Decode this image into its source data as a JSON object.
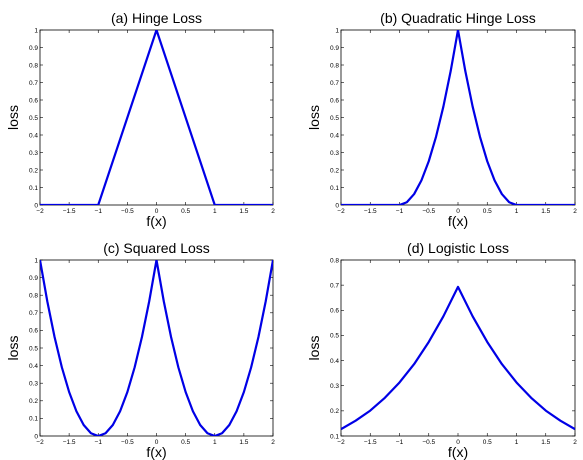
{
  "accent_color": "#0000e6",
  "chart_data": [
    {
      "type": "line",
      "title": "(a) Hinge Loss",
      "xlabel": "f(x)",
      "ylabel": "loss",
      "xlim": [
        -2,
        2
      ],
      "ylim": [
        0,
        1
      ],
      "x_ticks": [
        "−2",
        "−1.5",
        "−1",
        "−0.5",
        "0",
        "0.5",
        "1",
        "1.5",
        "2"
      ],
      "y_ticks": [
        "0",
        "0.1",
        "0.2",
        "0.3",
        "0.4",
        "0.5",
        "0.6",
        "0.7",
        "0.8",
        "0.9",
        "1"
      ],
      "series": [
        {
          "x": [
            -2,
            -1,
            0,
            1,
            2
          ],
          "y": [
            0,
            0,
            1,
            0,
            0
          ]
        }
      ]
    },
    {
      "type": "line",
      "title": "(b) Quadratic Hinge Loss",
      "xlabel": "f(x)",
      "ylabel": "loss",
      "xlim": [
        -2,
        2
      ],
      "ylim": [
        0,
        1
      ],
      "x_ticks": [
        "−2",
        "−1.5",
        "−1",
        "−0.5",
        "0",
        "0.5",
        "1",
        "1.5",
        "2"
      ],
      "y_ticks": [
        "0",
        "0.1",
        "0.2",
        "0.3",
        "0.4",
        "0.5",
        "0.6",
        "0.7",
        "0.8",
        "0.9",
        "1"
      ],
      "series": [
        {
          "x": [
            -2,
            -1,
            -0.875,
            -0.75,
            -0.625,
            -0.5,
            -0.375,
            -0.25,
            -0.125,
            0,
            0.125,
            0.25,
            0.375,
            0.5,
            0.625,
            0.75,
            0.875,
            1,
            2
          ],
          "y": [
            0,
            0,
            0.0156,
            0.0625,
            0.1406,
            0.25,
            0.3906,
            0.5625,
            0.7656,
            1,
            0.7656,
            0.5625,
            0.3906,
            0.25,
            0.1406,
            0.0625,
            0.0156,
            0,
            0
          ]
        }
      ]
    },
    {
      "type": "line",
      "title": "(c) Squared Loss",
      "xlabel": "f(x)",
      "ylabel": "loss",
      "xlim": [
        -2,
        2
      ],
      "ylim": [
        0,
        1
      ],
      "x_ticks": [
        "−2",
        "−1.5",
        "−1",
        "−0.5",
        "0",
        "0.5",
        "1",
        "1.5",
        "2"
      ],
      "y_ticks": [
        "0",
        "0.1",
        "0.2",
        "0.3",
        "0.4",
        "0.5",
        "0.6",
        "0.7",
        "0.8",
        "0.9",
        "1"
      ],
      "series": [
        {
          "x": [
            -2,
            -1.875,
            -1.75,
            -1.625,
            -1.5,
            -1.375,
            -1.25,
            -1.125,
            -1,
            -0.875,
            -0.75,
            -0.625,
            -0.5,
            -0.375,
            -0.25,
            -0.125,
            0,
            0.125,
            0.25,
            0.375,
            0.5,
            0.625,
            0.75,
            0.875,
            1,
            1.125,
            1.25,
            1.375,
            1.5,
            1.625,
            1.75,
            1.875,
            2
          ],
          "y": [
            1,
            0.7656,
            0.5625,
            0.3906,
            0.25,
            0.1406,
            0.0625,
            0.0156,
            0,
            0.0156,
            0.0625,
            0.1406,
            0.25,
            0.3906,
            0.5625,
            0.7656,
            1,
            0.7656,
            0.5625,
            0.3906,
            0.25,
            0.1406,
            0.0625,
            0.0156,
            0,
            0.0156,
            0.0625,
            0.1406,
            0.25,
            0.3906,
            0.5625,
            0.7656,
            1
          ]
        }
      ]
    },
    {
      "type": "line",
      "title": "(d) Logistic Loss",
      "xlabel": "f(x)",
      "ylabel": "loss",
      "xlim": [
        -2,
        2
      ],
      "ylim": [
        0.1,
        0.8
      ],
      "x_ticks": [
        "−2",
        "−1.5",
        "−1",
        "−0.5",
        "0",
        "0.5",
        "1",
        "1.5",
        "2"
      ],
      "y_ticks": [
        "0.1",
        "0.2",
        "0.3",
        "0.4",
        "0.5",
        "0.6",
        "0.7",
        "0.8"
      ],
      "series": [
        {
          "x": [
            -2,
            -1.75,
            -1.5,
            -1.25,
            -1,
            -0.75,
            -0.5,
            -0.25,
            0,
            0.25,
            0.5,
            0.75,
            1,
            1.25,
            1.5,
            1.75,
            2
          ],
          "y": [
            0.127,
            0.161,
            0.201,
            0.252,
            0.313,
            0.386,
            0.474,
            0.576,
            0.693,
            0.576,
            0.474,
            0.386,
            0.313,
            0.252,
            0.201,
            0.161,
            0.127
          ]
        }
      ]
    }
  ]
}
